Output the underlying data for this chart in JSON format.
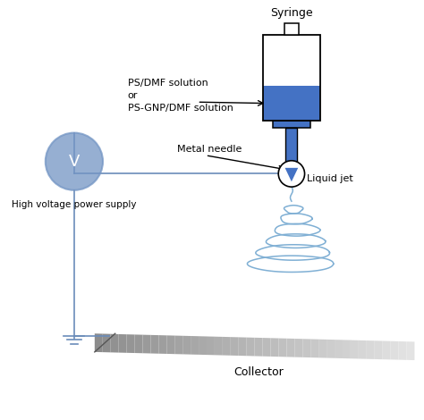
{
  "bg_color": "#ffffff",
  "syringe_blue": "#4472c4",
  "wire_color": "#6b8cba",
  "jet_color": "#7fafd4",
  "voltage_circle_color": "#7395c4",
  "collector_color_light": "#d0d0d0",
  "collector_color_dark": "#888888",
  "text_color": "#000000",
  "labels": {
    "syringe": "Syringe",
    "solution": "PS/DMF solution\nor\nPS-GNP/DMF solution",
    "needle": "Metal needle",
    "jet": "Liquid jet",
    "voltage": "V",
    "power_supply": "High voltage power supply",
    "collector": "Collector"
  },
  "figsize": [
    4.74,
    4.7
  ],
  "dpi": 100
}
